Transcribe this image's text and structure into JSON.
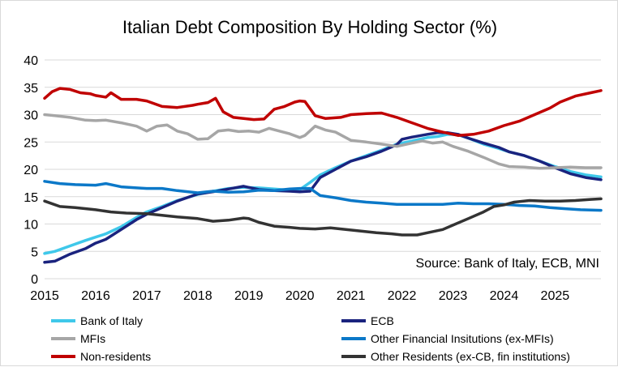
{
  "chart_data": {
    "type": "line",
    "title": "Italian Debt Composition By Holding Sector (%)",
    "annotation": "Source: Bank of Italy, ECB, MNI",
    "xlabel": "",
    "ylabel": "",
    "xlim": [
      2015,
      2025.9
    ],
    "ylim": [
      0,
      40
    ],
    "y_ticks": [
      0,
      5,
      10,
      15,
      20,
      25,
      30,
      35,
      40
    ],
    "x_ticks": [
      "2015",
      "2016",
      "2017",
      "2018",
      "2019",
      "2020",
      "2021",
      "2022",
      "2023",
      "2024",
      "2025"
    ],
    "grid": "horizontal",
    "legend_position": "bottom",
    "series": [
      {
        "name": "Bank of Italy",
        "color": "#3fc8ea",
        "points": [
          [
            2015.0,
            4.6
          ],
          [
            2015.2,
            5.0
          ],
          [
            2015.5,
            6.0
          ],
          [
            2015.8,
            7.0
          ],
          [
            2016.0,
            7.6
          ],
          [
            2016.2,
            8.2
          ],
          [
            2016.5,
            9.5
          ],
          [
            2016.8,
            11.2
          ],
          [
            2017.0,
            12.2
          ],
          [
            2017.3,
            13.2
          ],
          [
            2017.6,
            14.3
          ],
          [
            2018.0,
            15.4
          ],
          [
            2018.3,
            16.0
          ],
          [
            2018.6,
            16.5
          ],
          [
            2018.9,
            16.7
          ],
          [
            2019.2,
            16.6
          ],
          [
            2019.5,
            16.4
          ],
          [
            2019.8,
            16.2
          ],
          [
            2020.0,
            16.3
          ],
          [
            2020.2,
            17.6
          ],
          [
            2020.4,
            19.0
          ],
          [
            2020.7,
            20.3
          ],
          [
            2021.0,
            21.5
          ],
          [
            2021.3,
            22.5
          ],
          [
            2021.6,
            23.5
          ],
          [
            2021.9,
            24.6
          ],
          [
            2022.2,
            25.2
          ],
          [
            2022.5,
            25.8
          ],
          [
            2022.7,
            26.0
          ],
          [
            2022.9,
            26.4
          ],
          [
            2023.1,
            26.3
          ],
          [
            2023.3,
            25.7
          ],
          [
            2023.6,
            24.6
          ],
          [
            2023.9,
            23.8
          ],
          [
            2024.1,
            23.2
          ],
          [
            2024.4,
            22.5
          ],
          [
            2024.7,
            21.5
          ],
          [
            2025.0,
            20.5
          ],
          [
            2025.3,
            19.6
          ],
          [
            2025.6,
            19.0
          ],
          [
            2025.9,
            18.6
          ]
        ]
      },
      {
        "name": "ECB",
        "color": "#1a237e",
        "points": [
          [
            2015.0,
            3.0
          ],
          [
            2015.2,
            3.2
          ],
          [
            2015.5,
            4.5
          ],
          [
            2015.8,
            5.5
          ],
          [
            2016.0,
            6.5
          ],
          [
            2016.2,
            7.2
          ],
          [
            2016.5,
            9.0
          ],
          [
            2016.8,
            10.8
          ],
          [
            2017.0,
            11.8
          ],
          [
            2017.3,
            13.0
          ],
          [
            2017.6,
            14.2
          ],
          [
            2018.0,
            15.5
          ],
          [
            2018.3,
            15.9
          ],
          [
            2018.6,
            16.4
          ],
          [
            2018.9,
            16.9
          ],
          [
            2019.0,
            16.7
          ],
          [
            2019.2,
            16.3
          ],
          [
            2019.5,
            16.1
          ],
          [
            2019.8,
            16.0
          ],
          [
            2020.0,
            15.9
          ],
          [
            2020.2,
            16.0
          ],
          [
            2020.4,
            18.5
          ],
          [
            2020.7,
            20.0
          ],
          [
            2021.0,
            21.5
          ],
          [
            2021.3,
            22.3
          ],
          [
            2021.6,
            23.3
          ],
          [
            2021.9,
            24.5
          ],
          [
            2022.0,
            25.5
          ],
          [
            2022.2,
            25.9
          ],
          [
            2022.5,
            26.4
          ],
          [
            2022.7,
            26.7
          ],
          [
            2022.9,
            26.7
          ],
          [
            2023.1,
            26.4
          ],
          [
            2023.3,
            25.7
          ],
          [
            2023.6,
            24.8
          ],
          [
            2023.9,
            24.0
          ],
          [
            2024.1,
            23.2
          ],
          [
            2024.4,
            22.5
          ],
          [
            2024.7,
            21.5
          ],
          [
            2025.0,
            20.3
          ],
          [
            2025.3,
            19.2
          ],
          [
            2025.6,
            18.5
          ],
          [
            2025.9,
            18.1
          ]
        ]
      },
      {
        "name": "MFIs",
        "color": "#a6a6a6",
        "points": [
          [
            2015.0,
            30.0
          ],
          [
            2015.2,
            29.8
          ],
          [
            2015.5,
            29.5
          ],
          [
            2015.8,
            29.0
          ],
          [
            2016.0,
            28.9
          ],
          [
            2016.2,
            29.0
          ],
          [
            2016.5,
            28.5
          ],
          [
            2016.8,
            27.9
          ],
          [
            2017.0,
            27.0
          ],
          [
            2017.2,
            27.9
          ],
          [
            2017.4,
            28.1
          ],
          [
            2017.6,
            27.0
          ],
          [
            2017.8,
            26.5
          ],
          [
            2018.0,
            25.5
          ],
          [
            2018.2,
            25.6
          ],
          [
            2018.4,
            27.0
          ],
          [
            2018.6,
            27.2
          ],
          [
            2018.8,
            26.9
          ],
          [
            2019.0,
            27.0
          ],
          [
            2019.2,
            26.8
          ],
          [
            2019.4,
            27.5
          ],
          [
            2019.6,
            27.0
          ],
          [
            2019.8,
            26.5
          ],
          [
            2020.0,
            25.8
          ],
          [
            2020.1,
            26.2
          ],
          [
            2020.3,
            27.9
          ],
          [
            2020.5,
            27.2
          ],
          [
            2020.7,
            26.8
          ],
          [
            2021.0,
            25.3
          ],
          [
            2021.3,
            25.0
          ],
          [
            2021.6,
            24.6
          ],
          [
            2021.9,
            24.2
          ],
          [
            2022.1,
            24.6
          ],
          [
            2022.4,
            25.2
          ],
          [
            2022.6,
            24.8
          ],
          [
            2022.8,
            25.0
          ],
          [
            2023.0,
            24.2
          ],
          [
            2023.3,
            23.3
          ],
          [
            2023.6,
            22.2
          ],
          [
            2023.9,
            21.0
          ],
          [
            2024.1,
            20.5
          ],
          [
            2024.4,
            20.4
          ],
          [
            2024.7,
            20.2
          ],
          [
            2025.0,
            20.3
          ],
          [
            2025.3,
            20.4
          ],
          [
            2025.6,
            20.3
          ],
          [
            2025.9,
            20.3
          ]
        ]
      },
      {
        "name": "Other Financial Insitutions (ex-MFIs)",
        "color": "#0b78c8",
        "points": [
          [
            2015.0,
            17.8
          ],
          [
            2015.3,
            17.4
          ],
          [
            2015.6,
            17.2
          ],
          [
            2016.0,
            17.1
          ],
          [
            2016.2,
            17.4
          ],
          [
            2016.5,
            16.8
          ],
          [
            2016.8,
            16.6
          ],
          [
            2017.0,
            16.5
          ],
          [
            2017.3,
            16.5
          ],
          [
            2017.6,
            16.1
          ],
          [
            2018.0,
            15.7
          ],
          [
            2018.3,
            16.0
          ],
          [
            2018.6,
            15.8
          ],
          [
            2018.9,
            15.9
          ],
          [
            2019.2,
            16.2
          ],
          [
            2019.5,
            16.1
          ],
          [
            2019.8,
            16.4
          ],
          [
            2020.0,
            16.5
          ],
          [
            2020.2,
            16.5
          ],
          [
            2020.4,
            15.2
          ],
          [
            2020.7,
            14.8
          ],
          [
            2021.0,
            14.3
          ],
          [
            2021.3,
            14.0
          ],
          [
            2021.6,
            13.8
          ],
          [
            2021.9,
            13.6
          ],
          [
            2022.2,
            13.6
          ],
          [
            2022.5,
            13.6
          ],
          [
            2022.8,
            13.6
          ],
          [
            2023.1,
            13.8
          ],
          [
            2023.4,
            13.7
          ],
          [
            2023.7,
            13.7
          ],
          [
            2024.0,
            13.6
          ],
          [
            2024.3,
            13.4
          ],
          [
            2024.6,
            13.3
          ],
          [
            2024.9,
            13.0
          ],
          [
            2025.2,
            12.8
          ],
          [
            2025.5,
            12.6
          ],
          [
            2025.9,
            12.5
          ]
        ]
      },
      {
        "name": "Non-residents",
        "color": "#c00000",
        "points": [
          [
            2015.0,
            33.0
          ],
          [
            2015.15,
            34.2
          ],
          [
            2015.3,
            34.8
          ],
          [
            2015.5,
            34.6
          ],
          [
            2015.7,
            34.0
          ],
          [
            2015.9,
            33.8
          ],
          [
            2016.0,
            33.5
          ],
          [
            2016.2,
            33.2
          ],
          [
            2016.3,
            34.0
          ],
          [
            2016.5,
            32.8
          ],
          [
            2016.8,
            32.8
          ],
          [
            2017.0,
            32.5
          ],
          [
            2017.3,
            31.5
          ],
          [
            2017.6,
            31.3
          ],
          [
            2017.9,
            31.7
          ],
          [
            2018.0,
            31.9
          ],
          [
            2018.2,
            32.2
          ],
          [
            2018.35,
            33.0
          ],
          [
            2018.5,
            30.5
          ],
          [
            2018.7,
            29.5
          ],
          [
            2018.9,
            29.3
          ],
          [
            2019.1,
            29.1
          ],
          [
            2019.3,
            29.2
          ],
          [
            2019.5,
            31.0
          ],
          [
            2019.7,
            31.5
          ],
          [
            2019.9,
            32.3
          ],
          [
            2020.0,
            32.5
          ],
          [
            2020.1,
            32.4
          ],
          [
            2020.3,
            29.8
          ],
          [
            2020.5,
            29.3
          ],
          [
            2020.8,
            29.5
          ],
          [
            2021.0,
            30.0
          ],
          [
            2021.3,
            30.2
          ],
          [
            2021.6,
            30.3
          ],
          [
            2021.9,
            29.5
          ],
          [
            2022.2,
            28.5
          ],
          [
            2022.5,
            27.5
          ],
          [
            2022.8,
            26.8
          ],
          [
            2023.1,
            26.2
          ],
          [
            2023.4,
            26.4
          ],
          [
            2023.7,
            27.0
          ],
          [
            2024.0,
            28.0
          ],
          [
            2024.3,
            28.8
          ],
          [
            2024.6,
            30.0
          ],
          [
            2024.9,
            31.2
          ],
          [
            2025.1,
            32.3
          ],
          [
            2025.4,
            33.4
          ],
          [
            2025.7,
            34.0
          ],
          [
            2025.9,
            34.4
          ]
        ]
      },
      {
        "name": "Other Residents (ex-CB, fin institutions)",
        "color": "#333333",
        "points": [
          [
            2015.0,
            14.2
          ],
          [
            2015.3,
            13.2
          ],
          [
            2015.6,
            13.0
          ],
          [
            2016.0,
            12.6
          ],
          [
            2016.3,
            12.2
          ],
          [
            2016.6,
            12.0
          ],
          [
            2017.0,
            11.9
          ],
          [
            2017.3,
            11.6
          ],
          [
            2017.6,
            11.3
          ],
          [
            2018.0,
            11.0
          ],
          [
            2018.3,
            10.5
          ],
          [
            2018.6,
            10.7
          ],
          [
            2018.9,
            11.1
          ],
          [
            2019.0,
            11.0
          ],
          [
            2019.2,
            10.3
          ],
          [
            2019.5,
            9.6
          ],
          [
            2019.8,
            9.4
          ],
          [
            2020.0,
            9.2
          ],
          [
            2020.3,
            9.1
          ],
          [
            2020.6,
            9.3
          ],
          [
            2020.9,
            9.0
          ],
          [
            2021.2,
            8.7
          ],
          [
            2021.5,
            8.4
          ],
          [
            2021.8,
            8.2
          ],
          [
            2022.0,
            8.0
          ],
          [
            2022.3,
            8.0
          ],
          [
            2022.5,
            8.4
          ],
          [
            2022.8,
            9.0
          ],
          [
            2023.0,
            9.8
          ],
          [
            2023.3,
            11.0
          ],
          [
            2023.6,
            12.2
          ],
          [
            2023.8,
            13.2
          ],
          [
            2024.0,
            13.5
          ],
          [
            2024.2,
            14.0
          ],
          [
            2024.5,
            14.3
          ],
          [
            2024.8,
            14.2
          ],
          [
            2025.1,
            14.2
          ],
          [
            2025.4,
            14.3
          ],
          [
            2025.7,
            14.5
          ],
          [
            2025.9,
            14.6
          ]
        ]
      }
    ]
  }
}
